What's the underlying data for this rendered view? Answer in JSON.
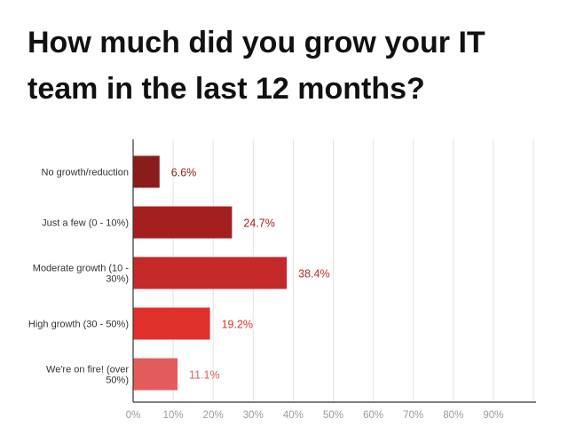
{
  "chart_data": {
    "type": "bar",
    "orientation": "horizontal",
    "title": "How much did you grow your IT team in the last 12 months?",
    "categories": [
      [
        "No growth/reduction"
      ],
      [
        "Just a few (0 - 10%)"
      ],
      [
        "Moderate growth (10 -",
        "30%)"
      ],
      [
        "High growth (30 - 50%)"
      ],
      [
        "We're on fire! (over",
        "50%)"
      ]
    ],
    "values": [
      6.6,
      24.7,
      38.4,
      19.2,
      11.1
    ],
    "value_labels": [
      "6.6%",
      "24.7%",
      "38.4%",
      "19.2%",
      "11.1%"
    ],
    "bar_colors": [
      "#8b1c1c",
      "#a3201f",
      "#c42a2a",
      "#e0302c",
      "#e35b5b"
    ],
    "label_colors": [
      "#8b1c1c",
      "#a3201f",
      "#c42a2a",
      "#e0302c",
      "#e35b5b"
    ],
    "xticks": [
      0,
      10,
      20,
      30,
      40,
      50,
      60,
      70,
      80,
      90
    ],
    "xtick_labels": [
      "0%",
      "10%",
      "20%",
      "30%",
      "40%",
      "50%",
      "60%",
      "70%",
      "80%",
      "90%"
    ],
    "xlim": [
      0,
      100
    ],
    "xlabel": "",
    "ylabel": "",
    "grid": true,
    "legend": "none"
  }
}
